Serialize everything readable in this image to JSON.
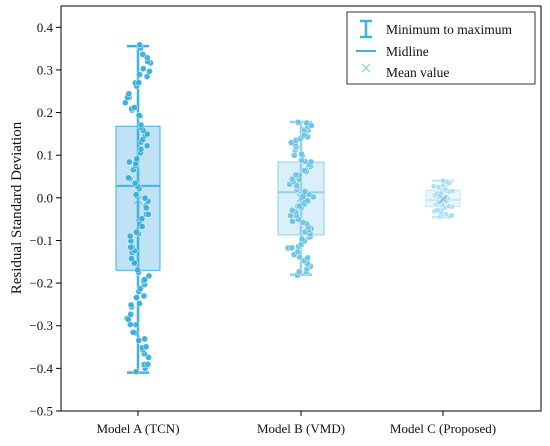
{
  "chart_data": {
    "type": "box",
    "ylabel": "Residual Standard Deviation",
    "xlabel": "",
    "ylim": [
      -0.5,
      0.45
    ],
    "yticks": [
      0.4,
      0.3,
      0.2,
      0.1,
      0.0,
      -0.1,
      -0.2,
      -0.3,
      -0.4,
      -0.5
    ],
    "ytick_labels": [
      "0.4",
      "0.3",
      "0.2",
      "0.1",
      "0.0",
      "−0.1",
      "−0.2",
      "−0.3",
      "−0.4",
      "−0.5"
    ],
    "categories": [
      "Model A (TCN)",
      "Model B (VMD)",
      "Model C (Proposed)"
    ],
    "series": [
      {
        "category": "Model A (TCN)",
        "min": -0.41,
        "q1": -0.17,
        "median": 0.028,
        "mean": -0.005,
        "q3": 0.168,
        "max": 0.356,
        "fill": "#bfe3f4",
        "stroke": "#3fb3df",
        "point_color": "#3aaedb"
      },
      {
        "category": "Model B (VMD)",
        "min": -0.18,
        "q1": -0.087,
        "median": 0.013,
        "mean": 0.0,
        "q3": 0.084,
        "max": 0.178,
        "fill": "#d9eff9",
        "stroke": "#8fd0ec",
        "point_color": "#6cc4e6"
      },
      {
        "category": "Model C (Proposed)",
        "min": -0.045,
        "q1": -0.02,
        "median": -0.005,
        "mean": -0.003,
        "q3": 0.018,
        "max": 0.04,
        "fill": "#e9f6fc",
        "stroke": "#c5e8f6",
        "point_color": "#a8dcf1"
      }
    ],
    "legend": {
      "position": "top-right",
      "items": [
        {
          "label": "Minimum to maximum",
          "icon": "whisker-icon"
        },
        {
          "label": "Midline",
          "icon": "line-icon"
        },
        {
          "label": "Mean value",
          "icon": "x-marker-icon"
        }
      ]
    },
    "colors": {
      "accent": "#3fb3df",
      "axis": "#000000"
    }
  }
}
